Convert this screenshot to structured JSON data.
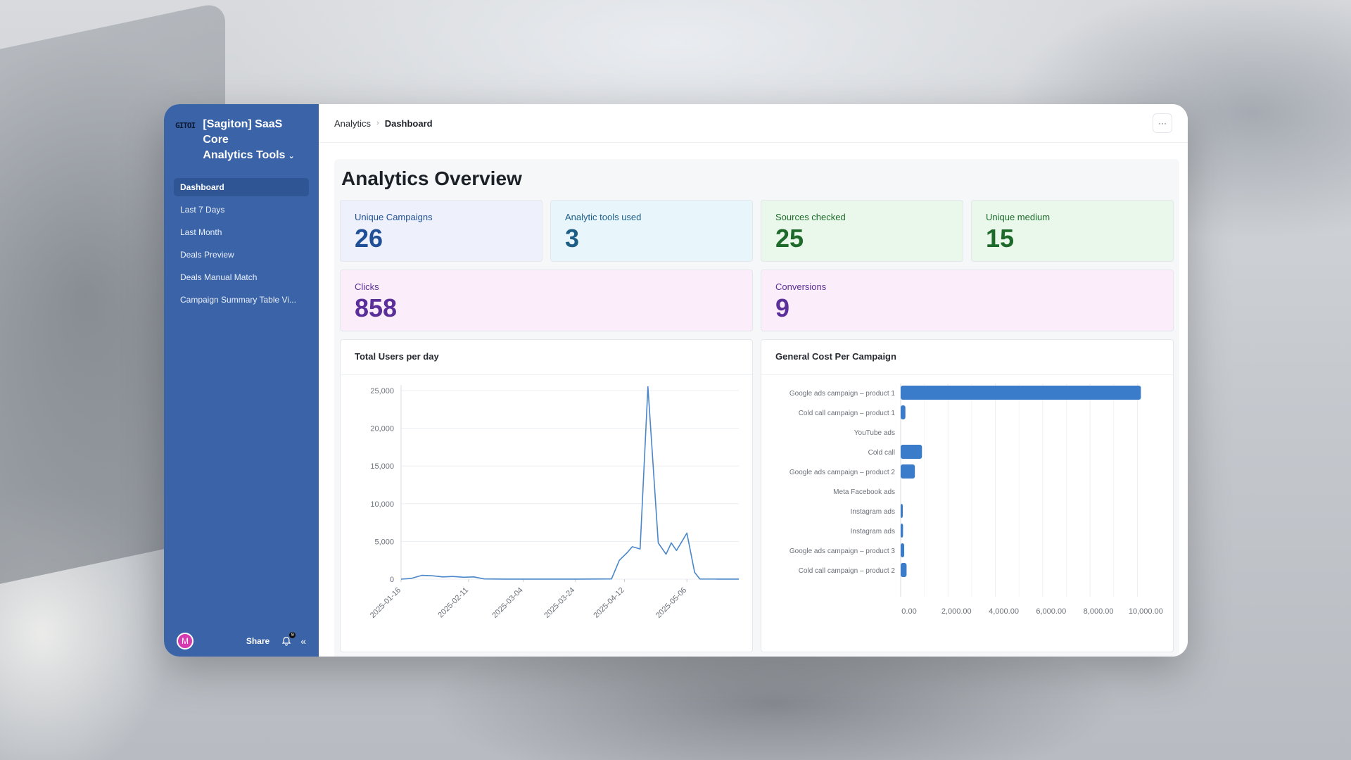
{
  "sidebar": {
    "logo_text": "GITOI",
    "workspace_title_line1": "[Sagiton] SaaS Core",
    "workspace_title_line2": "Analytics Tools",
    "items": [
      {
        "label": "Dashboard",
        "active": true
      },
      {
        "label": "Last 7 Days",
        "active": false
      },
      {
        "label": "Last Month",
        "active": false
      },
      {
        "label": "Deals Preview",
        "active": false
      },
      {
        "label": "Deals Manual Match",
        "active": false
      },
      {
        "label": "Campaign Summary Table Vi...",
        "active": false
      }
    ],
    "footer": {
      "avatar_initial": "M",
      "share_label": "Share",
      "notification_count": "9",
      "bell_icon": "bell-icon",
      "collapse_icon": "double-chevron-left-icon"
    }
  },
  "topbar": {
    "breadcrumb_root": "Analytics",
    "breadcrumb_current": "Dashboard",
    "more_label": "···"
  },
  "page": {
    "title": "Analytics Overview"
  },
  "stats": [
    {
      "label": "Unique Campaigns",
      "value": "26"
    },
    {
      "label": "Analytic tools used",
      "value": "3"
    },
    {
      "label": "Sources checked",
      "value": "25"
    },
    {
      "label": "Unique medium",
      "value": "15"
    },
    {
      "label": "Clicks",
      "value": "858"
    },
    {
      "label": "Conversions",
      "value": "9"
    }
  ],
  "colors": {
    "sidebar": "#3a63a8",
    "chart_line": "#4a86c8",
    "chart_bar": "#3a7cc9"
  },
  "chart_data": [
    {
      "type": "line",
      "title": "Total Users per day",
      "x_ticks": [
        "2025-01-16",
        "2025-02-11",
        "2025-03-04",
        "2025-03-24",
        "2025-04-12",
        "2025-05-06"
      ],
      "y_ticks": [
        "25,000",
        "20,000",
        "15,000",
        "10,000",
        "5,000",
        "0"
      ],
      "ylim": [
        0,
        25000
      ],
      "xlim": [
        "2025-01-16",
        "2025-05-26"
      ],
      "series": [
        {
          "points": [
            [
              "2025-01-16",
              0
            ],
            [
              "2025-01-20",
              100
            ],
            [
              "2025-01-24",
              500
            ],
            [
              "2025-01-28",
              450
            ],
            [
              "2025-02-01",
              300
            ],
            [
              "2025-02-05",
              350
            ],
            [
              "2025-02-09",
              250
            ],
            [
              "2025-02-13",
              300
            ],
            [
              "2025-02-17",
              30
            ],
            [
              "2025-02-25",
              10
            ],
            [
              "2025-03-10",
              10
            ],
            [
              "2025-03-25",
              10
            ],
            [
              "2025-04-07",
              30
            ],
            [
              "2025-04-10",
              2500
            ],
            [
              "2025-04-13",
              3500
            ],
            [
              "2025-04-15",
              4300
            ],
            [
              "2025-04-18",
              4000
            ],
            [
              "2025-04-21",
              25500
            ],
            [
              "2025-04-25",
              4800
            ],
            [
              "2025-04-28",
              3300
            ],
            [
              "2025-04-30",
              4800
            ],
            [
              "2025-05-02",
              3800
            ],
            [
              "2025-05-06",
              6100
            ],
            [
              "2025-05-09",
              900
            ],
            [
              "2025-05-11",
              20
            ],
            [
              "2025-05-18",
              10
            ],
            [
              "2025-05-26",
              10
            ]
          ]
        }
      ]
    },
    {
      "type": "bar",
      "orientation": "horizontal",
      "title": "General Cost Per Campaign",
      "categories": [
        "Google ads campaign – product 1",
        "Cold call campaign – product 1",
        "YouTube ads",
        "Cold call",
        "Google ads campaign – product 2",
        "Meta Facebook ads",
        "Instagram ads",
        "Instagram ads",
        "Google ads campaign – product 3",
        "Cold call campaign – product 2"
      ],
      "values": [
        10150,
        200,
        0,
        900,
        600,
        0,
        30,
        100,
        150,
        250
      ],
      "x_ticks": [
        "0.00",
        "2,000.00",
        "4,000.00",
        "6,000.00",
        "8,000.00",
        "10,000.00"
      ],
      "xlim": [
        0,
        11000
      ]
    }
  ]
}
